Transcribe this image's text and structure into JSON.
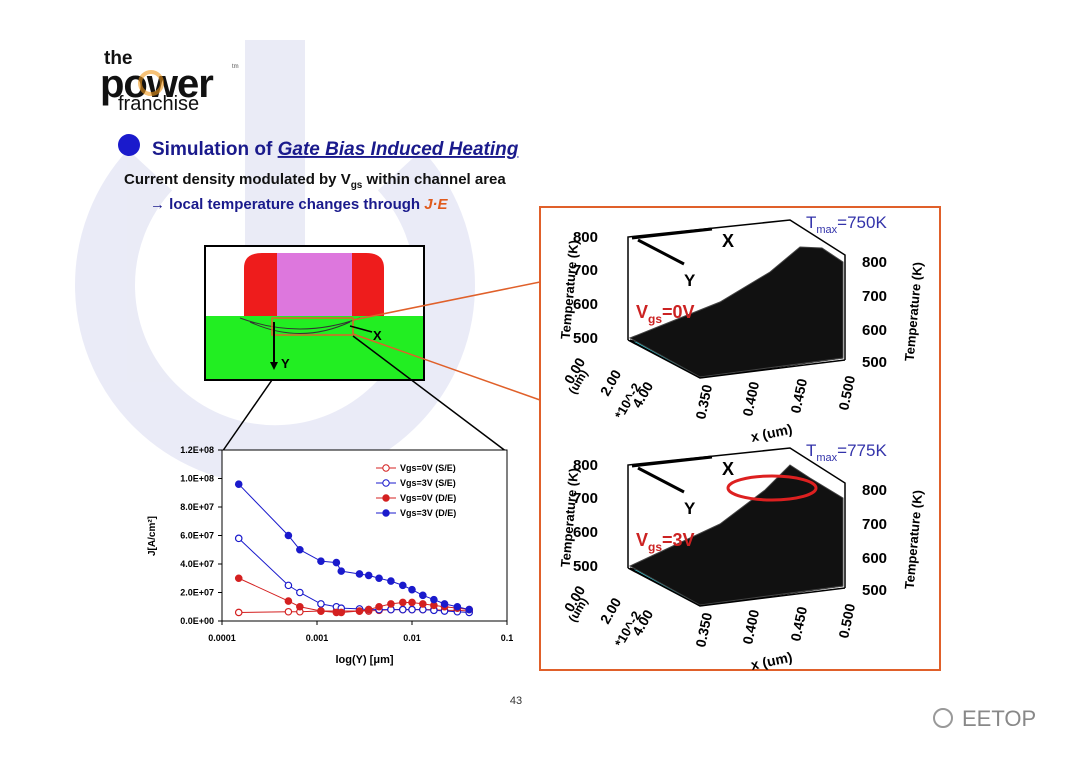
{
  "logo": {
    "top": "the",
    "main": "power",
    "tm": "tm",
    "bottom": "franchise"
  },
  "heading": {
    "prefix": "Simulation of ",
    "emphasis": "Gate Bias Induced Heating"
  },
  "line1": {
    "text": "Current density modulated by V",
    "sub": "gs",
    "rest": " within channel area"
  },
  "line2": {
    "text": "→ local temperature changes through ",
    "emphasis": "J·E"
  },
  "cross_section": {
    "x_label": "X",
    "y_label": "Y"
  },
  "surfaces": [
    {
      "z_label": "Temperature (K)",
      "z_ticks": [
        "800",
        "700",
        "600",
        "500"
      ],
      "x_ticks": [
        "0.350",
        "0.400",
        "0.450",
        "0.500"
      ],
      "x_label": "x (um)",
      "y_ticks": [
        "0.00",
        "2.00",
        "4.00"
      ],
      "y_scale": "*10^-2",
      "y_unit": "(um)",
      "arrow_x": "X",
      "arrow_y": "Y",
      "vgs_prefix": "V",
      "vgs_sub": "gs",
      "vgs_value": "=0V",
      "tmax_prefix": "T",
      "tmax_sub": "max",
      "tmax_value": "=750K"
    },
    {
      "z_label": "Temperature (K)",
      "z_ticks": [
        "800",
        "700",
        "600",
        "500"
      ],
      "x_ticks": [
        "0.350",
        "0.400",
        "0.450",
        "0.500"
      ],
      "x_label": "x (um)",
      "y_ticks": [
        "0.00",
        "2.00",
        "4.00"
      ],
      "y_scale": "*10^-2",
      "y_unit": "(um)",
      "arrow_x": "X",
      "arrow_y": "Y",
      "vgs_prefix": "V",
      "vgs_sub": "gs",
      "vgs_value": "=3V",
      "tmax_prefix": "T",
      "tmax_sub": "max",
      "tmax_value": "=775K"
    }
  ],
  "page_number": "43",
  "watermark": "EETOP",
  "chart_data": {
    "type": "line",
    "x_label": "log(Y) [μm]",
    "y_label": "J[A/cm²]",
    "log_x": true,
    "xlim": [
      0.0001,
      0.1
    ],
    "xticks": [
      0.0001,
      0.001,
      0.01,
      0.1
    ],
    "ylim": [
      0,
      120000000
    ],
    "yticks": [
      {
        "value": 0,
        "label": "0.0E+00"
      },
      {
        "value": 20000000,
        "label": "2.0E+07"
      },
      {
        "value": 40000000,
        "label": "4.0E+07"
      },
      {
        "value": 60000000,
        "label": "6.0E+07"
      },
      {
        "value": 80000000,
        "label": "8.0E+07"
      },
      {
        "value": 100000000,
        "label": "1.0E+08"
      },
      {
        "value": 120000000,
        "label": "1.2E+08"
      }
    ],
    "x": [
      0.00015,
      0.0005,
      0.00066,
      0.0011,
      0.0016,
      0.0018,
      0.0028,
      0.0035,
      0.0045,
      0.006,
      0.008,
      0.01,
      0.013,
      0.017,
      0.022,
      0.03,
      0.04
    ],
    "series": [
      {
        "name": "Vgs=0V (S/E)",
        "color": "#d42020",
        "filled": false,
        "values": [
          6000000,
          6500000,
          6500000,
          7000000,
          7000000,
          7000000,
          7000000,
          7000000,
          7500000,
          8000000,
          8000000,
          8000000,
          8000000,
          8000000,
          7500000,
          7500000,
          7000000
        ]
      },
      {
        "name": "Vgs=3V (S/E)",
        "color": "#1a1acc",
        "filled": false,
        "values": [
          58000000,
          25000000,
          20000000,
          12000000,
          10000000,
          9000000,
          8500000,
          8000000,
          8000000,
          8000000,
          8000000,
          8000000,
          8000000,
          7500000,
          7000000,
          6500000,
          6000000
        ]
      },
      {
        "name": "Vgs=0V (D/E)",
        "color": "#d42020",
        "filled": true,
        "values": [
          30000000,
          14000000,
          10000000,
          7000000,
          6000000,
          6000000,
          7000000,
          8000000,
          10000000,
          12000000,
          13000000,
          13000000,
          12000000,
          11000000,
          10000000,
          9000000,
          8000000
        ]
      },
      {
        "name": "Vgs=3V (D/E)",
        "color": "#1a1acc",
        "filled": true,
        "values": [
          96000000,
          60000000,
          50000000,
          42000000,
          41000000,
          35000000,
          33000000,
          32000000,
          30000000,
          28000000,
          25000000,
          22000000,
          18000000,
          15000000,
          12000000,
          10000000,
          8000000
        ]
      }
    ]
  }
}
